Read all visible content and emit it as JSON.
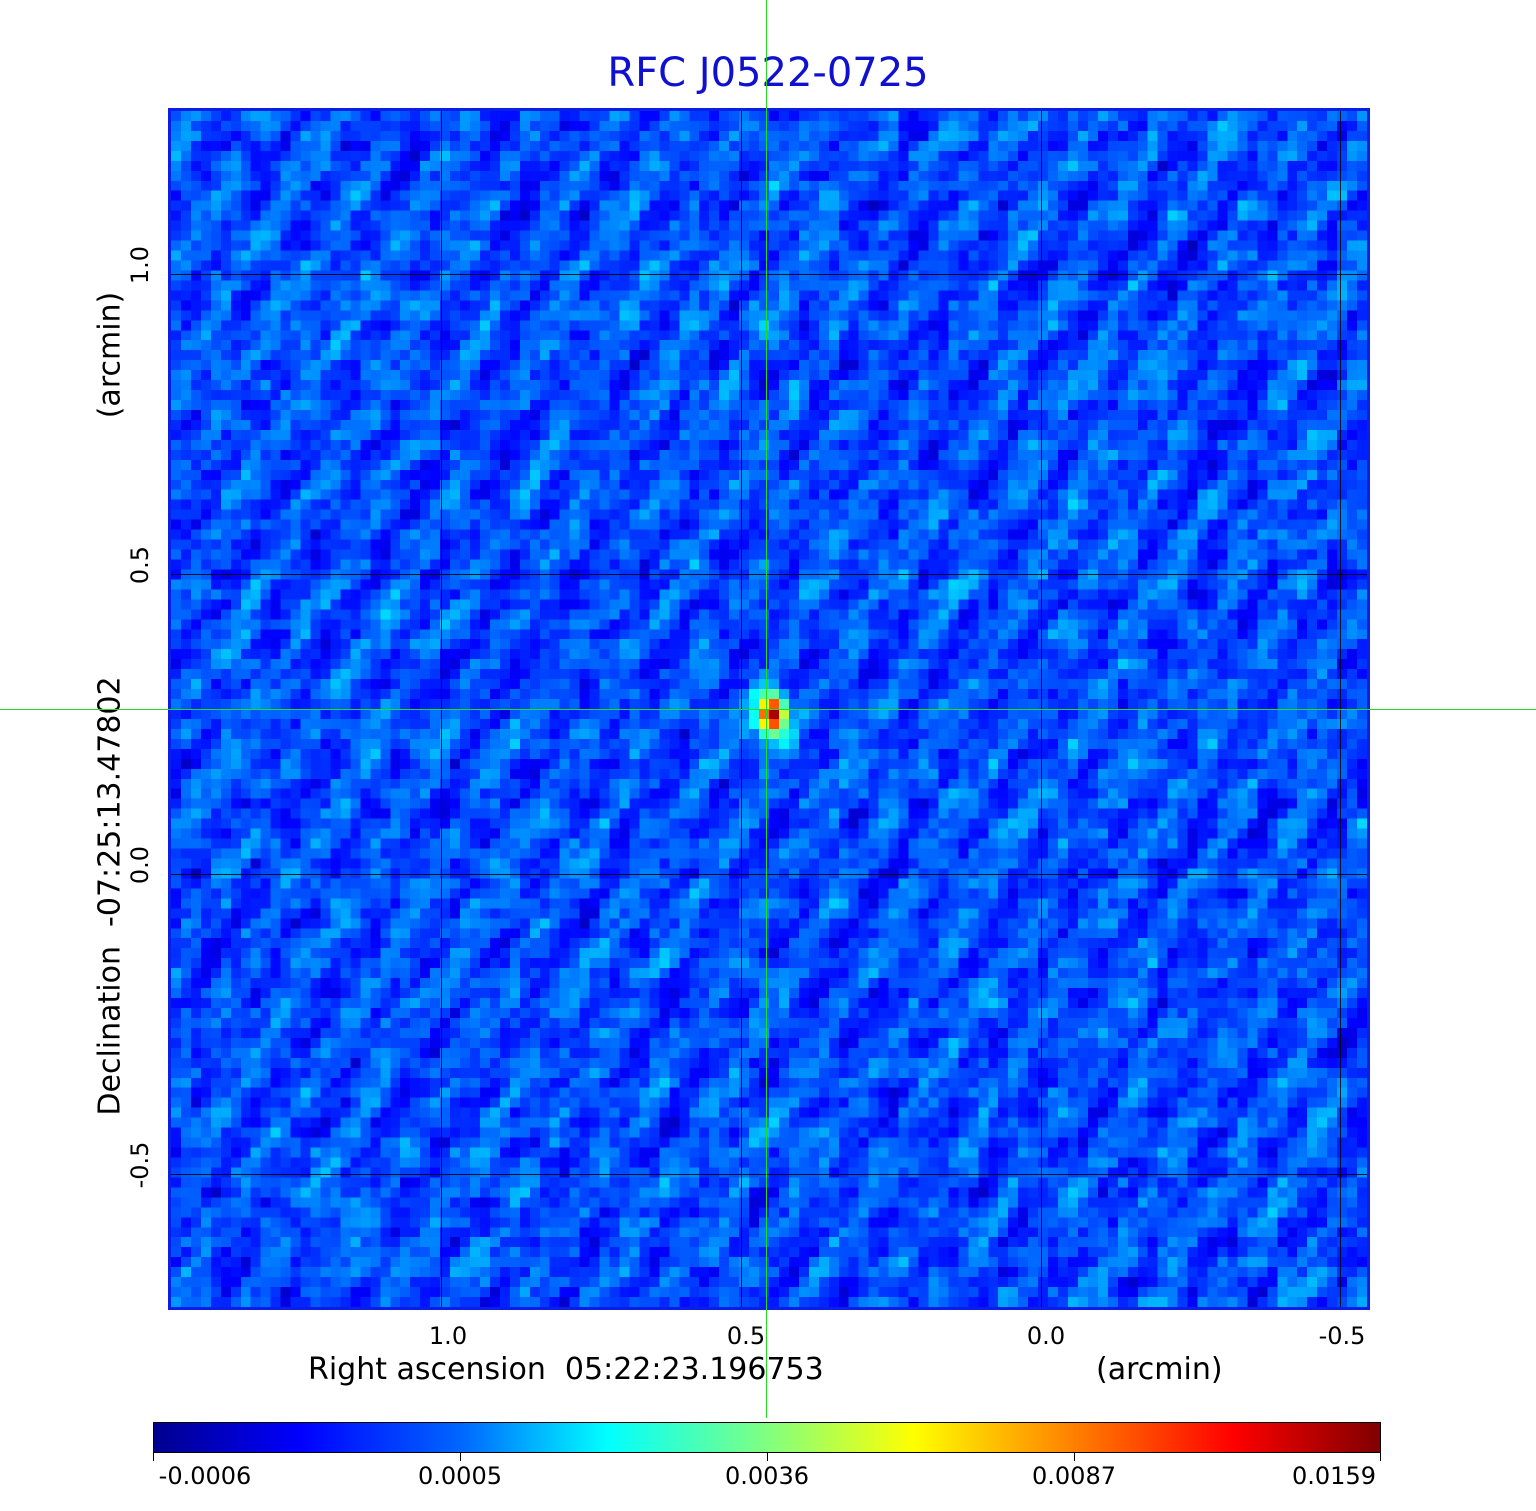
{
  "title": "RFC J0522-0725",
  "x_axis": {
    "label": "Right ascension  05:22:23.196753",
    "unit": "(arcmin)",
    "ticks": [
      "1.0",
      "0.5",
      "0.0",
      "-0.5"
    ]
  },
  "y_axis": {
    "label": "Declination  -07:25:13.47802",
    "unit": "(arcmin)",
    "ticks": [
      "1.0",
      "0.5",
      "0.0",
      "-0.5"
    ]
  },
  "colorbar": {
    "ticks": [
      "-0.0006",
      "0.0005",
      "0.0036",
      "0.0087",
      "0.0159"
    ],
    "colormap": "jet"
  },
  "colors": {
    "title": "#1010d0",
    "crosshair": "#22dd22",
    "frame": "#0a1ee6"
  },
  "source": {
    "peak": 0.0159
  }
}
